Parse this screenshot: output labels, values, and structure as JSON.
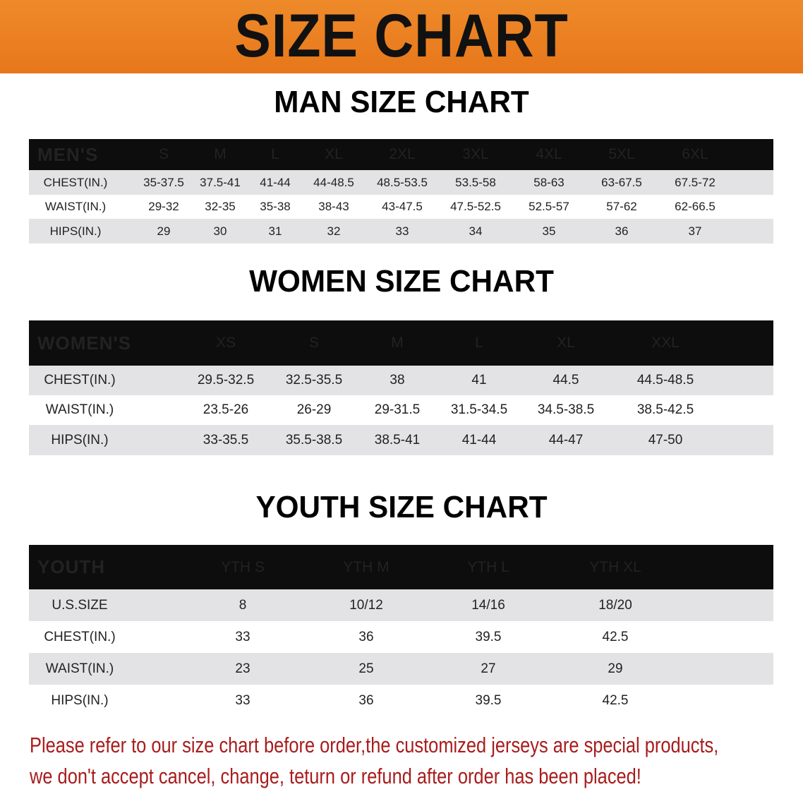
{
  "banner": {
    "title": "SIZE CHART",
    "color": "#e87a1a"
  },
  "men": {
    "title": "MAN SIZE CHART",
    "header": [
      "MEN'S",
      "S",
      "M",
      "L",
      "XL",
      "2XL",
      "3XL",
      "4XL",
      "5XL",
      "6XL"
    ],
    "rows": [
      [
        "CHEST(IN.)",
        "35-37.5",
        "37.5-41",
        "41-44",
        "44-48.5",
        "48.5-53.5",
        "53.5-58",
        "58-63",
        "63-67.5",
        "67.5-72"
      ],
      [
        "WAIST(IN.)",
        "29-32",
        "32-35",
        "35-38",
        "38-43",
        "43-47.5",
        "47.5-52.5",
        "52.5-57",
        "57-62",
        "62-66.5"
      ],
      [
        "HIPS(IN.)",
        "29",
        "30",
        "31",
        "32",
        "33",
        "34",
        "35",
        "36",
        "37"
      ]
    ]
  },
  "women": {
    "title": "WOMEN SIZE CHART",
    "header": [
      "WOMEN'S",
      "XS",
      "S",
      "M",
      "L",
      "XL",
      "XXL"
    ],
    "rows": [
      [
        "CHEST(IN.)",
        "29.5-32.5",
        "32.5-35.5",
        "38",
        "41",
        "44.5",
        "44.5-48.5"
      ],
      [
        "WAIST(IN.)",
        "23.5-26",
        "26-29",
        "29-31.5",
        "31.5-34.5",
        "34.5-38.5",
        "38.5-42.5"
      ],
      [
        "HIPS(IN.)",
        "33-35.5",
        "35.5-38.5",
        "38.5-41",
        "41-44",
        "44-47",
        "47-50"
      ]
    ]
  },
  "youth": {
    "title": "YOUTH SIZE CHART",
    "header": [
      "YOUTH",
      "YTH S",
      "YTH M",
      "YTH L",
      "YTH XL"
    ],
    "rows": [
      [
        "U.S.SIZE",
        "8",
        "10/12",
        "14/16",
        "18/20"
      ],
      [
        "CHEST(IN.)",
        "33",
        "36",
        "39.5",
        "42.5"
      ],
      [
        "WAIST(IN.)",
        "23",
        "25",
        "27",
        "29"
      ],
      [
        "HIPS(IN.)",
        "33",
        "36",
        "39.5",
        "42.5"
      ]
    ]
  },
  "note": {
    "line1": "Please refer to our size chart before order,the customized jerseys are special products,",
    "line2": "we don't accept cancel, change, teturn or refund after order has been placed!",
    "color": "#a81c1c"
  }
}
